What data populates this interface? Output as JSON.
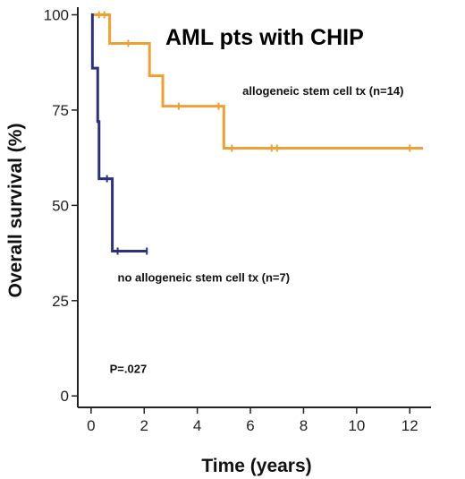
{
  "chart_data": {
    "type": "line",
    "title": "AML pts with CHIP",
    "xlabel": "Time (years)",
    "ylabel": "Overall survival (%)",
    "xlim": [
      -0.5,
      12.8
    ],
    "ylim": [
      -3,
      102
    ],
    "x_ticks": [
      0,
      2,
      4,
      6,
      8,
      10,
      12
    ],
    "y_ticks": [
      0,
      25,
      50,
      75,
      100
    ],
    "series": [
      {
        "name": "allogeneic stem cell tx (n=14)",
        "color": "#f0a033",
        "step_points": [
          [
            0,
            100
          ],
          [
            0.7,
            100
          ],
          [
            0.7,
            92.5
          ],
          [
            2.2,
            92.5
          ],
          [
            2.2,
            84
          ],
          [
            2.7,
            84
          ],
          [
            2.7,
            76
          ],
          [
            5.0,
            76
          ],
          [
            5.0,
            65
          ],
          [
            12.5,
            65
          ]
        ],
        "censor_x": [
          0.3,
          0.5,
          1.4,
          3.3,
          4.8,
          5.3,
          6.8,
          7.0,
          12.0
        ]
      },
      {
        "name": "no allogeneic stem cell tx (n=7)",
        "color": "#2e2f7e",
        "step_points": [
          [
            0,
            100
          ],
          [
            0.05,
            100
          ],
          [
            0.05,
            86
          ],
          [
            0.25,
            86
          ],
          [
            0.25,
            72
          ],
          [
            0.3,
            72
          ],
          [
            0.3,
            57
          ],
          [
            0.8,
            57
          ],
          [
            0.8,
            38
          ],
          [
            2.1,
            38
          ]
        ],
        "censor_x": [
          0.6,
          1.0,
          2.1
        ]
      }
    ],
    "annotations": [
      {
        "text": "allogeneic stem cell tx (n=14)",
        "x": 5.7,
        "y": 79
      },
      {
        "text": "no allogeneic stem cell tx (n=7)",
        "x": 1.0,
        "y": 30
      },
      {
        "text": "P=.027",
        "x": 0.7,
        "y": 6
      }
    ]
  }
}
